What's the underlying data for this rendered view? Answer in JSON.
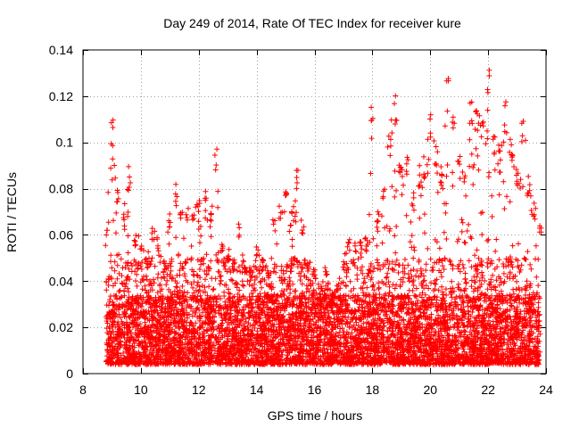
{
  "chart_data": {
    "type": "scatter",
    "title": "Day 249 of 2014, Rate Of TEC Index for receiver kure",
    "xlabel": "GPS time / hours",
    "ylabel": "ROTI / TECUs",
    "xlim": [
      8,
      24
    ],
    "ylim": [
      0,
      0.14
    ],
    "xticks": [
      8,
      10,
      12,
      14,
      16,
      18,
      20,
      22,
      24
    ],
    "xtick_labels": [
      "8",
      "10",
      "12",
      "14",
      "16",
      "18",
      "20",
      "22",
      "24"
    ],
    "yticks": [
      0,
      0.02,
      0.04,
      0.06,
      0.08,
      0.1,
      0.12,
      0.14
    ],
    "ytick_labels": [
      "0",
      "0.02",
      "0.04",
      "0.06",
      "0.08",
      "0.1",
      "0.12",
      "0.14"
    ],
    "grid": true,
    "marker": "+",
    "color": "#ff0000",
    "data_time_range": [
      8.8,
      23.8
    ],
    "envelope": {
      "x": [
        8.8,
        9.0,
        9.2,
        9.4,
        9.6,
        9.8,
        10.0,
        10.2,
        10.4,
        10.6,
        10.8,
        11.0,
        11.2,
        11.4,
        11.6,
        11.8,
        12.0,
        12.2,
        12.4,
        12.6,
        12.8,
        13.0,
        13.2,
        13.4,
        13.6,
        13.8,
        14.0,
        14.2,
        14.4,
        14.6,
        14.8,
        15.0,
        15.2,
        15.4,
        15.6,
        15.8,
        16.0,
        16.2,
        16.4,
        16.6,
        16.8,
        17.0,
        17.2,
        17.4,
        17.6,
        17.8,
        18.0,
        18.2,
        18.4,
        18.6,
        18.8,
        19.0,
        19.2,
        19.4,
        19.6,
        19.8,
        20.0,
        20.2,
        20.4,
        20.6,
        20.8,
        21.0,
        21.2,
        21.4,
        21.6,
        21.8,
        22.0,
        22.2,
        22.4,
        22.6,
        22.8,
        23.0,
        23.2,
        23.4,
        23.6,
        23.8
      ],
      "max": [
        0.063,
        0.11,
        0.08,
        0.07,
        0.09,
        0.06,
        0.06,
        0.05,
        0.065,
        0.06,
        0.05,
        0.07,
        0.082,
        0.07,
        0.075,
        0.07,
        0.075,
        0.08,
        0.07,
        0.099,
        0.06,
        0.055,
        0.05,
        0.065,
        0.05,
        0.045,
        0.055,
        0.05,
        0.045,
        0.068,
        0.075,
        0.08,
        0.07,
        0.088,
        0.065,
        0.05,
        0.045,
        0.038,
        0.048,
        0.035,
        0.04,
        0.05,
        0.06,
        0.057,
        0.058,
        0.06,
        0.121,
        0.07,
        0.085,
        0.105,
        0.122,
        0.09,
        0.095,
        0.08,
        0.09,
        0.095,
        0.112,
        0.1,
        0.09,
        0.128,
        0.115,
        0.095,
        0.087,
        0.118,
        0.115,
        0.11,
        0.132,
        0.105,
        0.1,
        0.118,
        0.105,
        0.09,
        0.113,
        0.088,
        0.075,
        0.065
      ]
    },
    "notes": "Dense ROTI scatter; most samples lie between 0.005 and 0.04 TECU/s, with spikes up to ~0.13 near 20.5 h and 22.2 h."
  }
}
